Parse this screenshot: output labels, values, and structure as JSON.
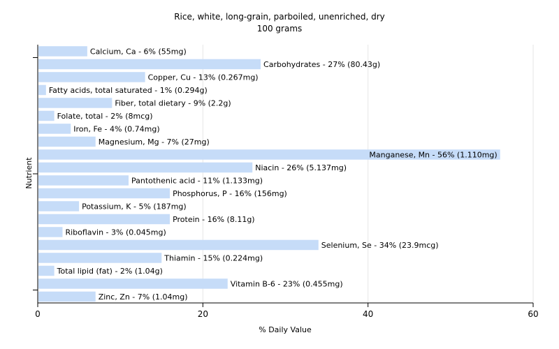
{
  "chart_data": {
    "type": "bar",
    "orientation": "horizontal",
    "title": "Rice, white, long-grain, parboiled, unenriched, dry",
    "subtitle": "100 grams",
    "xlabel": "% Daily Value",
    "ylabel": "Nutrient",
    "xlim": [
      0,
      60
    ],
    "xticks": [
      0,
      20,
      40,
      60
    ],
    "grid": true,
    "legend": "none",
    "bar_color": "#c6dcf8",
    "categories": [
      "Calcium, Ca",
      "Carbohydrates",
      "Copper, Cu",
      "Fatty acids, total saturated",
      "Fiber, total dietary",
      "Folate, total",
      "Iron, Fe",
      "Magnesium, Mg",
      "Manganese, Mn",
      "Niacin",
      "Pantothenic acid",
      "Phosphorus, P",
      "Potassium, K",
      "Protein",
      "Riboflavin",
      "Selenium, Se",
      "Thiamin",
      "Total lipid (fat)",
      "Vitamin B-6",
      "Zinc, Zn"
    ],
    "values": [
      6,
      27,
      13,
      1,
      9,
      2,
      4,
      7,
      56,
      26,
      11,
      16,
      5,
      16,
      3,
      34,
      15,
      2,
      23,
      7
    ],
    "labels": [
      "Calcium, Ca - 6% (55mg)",
      "Carbohydrates - 27% (80.43g)",
      "Copper, Cu - 13% (0.267mg)",
      "Fatty acids, total saturated - 1% (0.294g)",
      "Fiber, total dietary - 9% (2.2g)",
      "Folate, total - 2% (8mcg)",
      "Iron, Fe - 4% (0.74mg)",
      "Magnesium, Mg - 7% (27mg)",
      "Manganese, Mn - 56% (1.110mg)",
      "Niacin - 26% (5.137mg)",
      "Pantothenic acid - 11% (1.133mg)",
      "Phosphorus, P - 16% (156mg)",
      "Potassium, K - 5% (187mg)",
      "Protein - 16% (8.11g)",
      "Riboflavin - 3% (0.045mg)",
      "Selenium, Se - 34% (23.9mcg)",
      "Thiamin - 15% (0.224mg)",
      "Total lipid (fat) - 2% (1.04g)",
      "Vitamin B-6 - 23% (0.455mg)",
      "Zinc, Zn - 7% (1.04mg)"
    ]
  }
}
